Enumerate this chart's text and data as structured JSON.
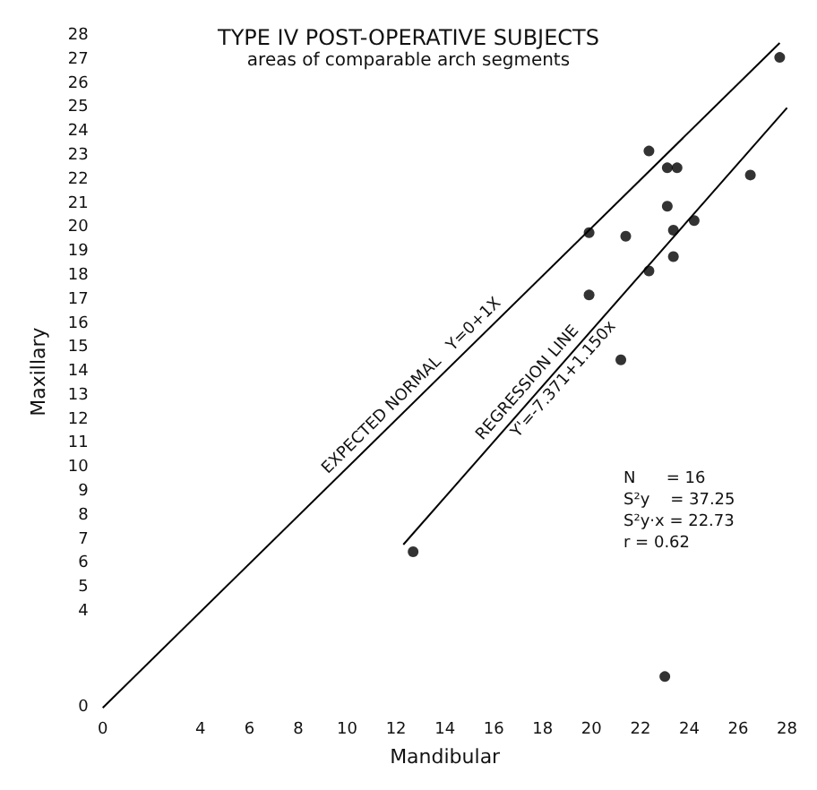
{
  "chart_data": {
    "type": "scatter",
    "title": "TYPE IV POST-OPERATIVE SUBJECTS",
    "subtitle": "areas of comparable arch segments",
    "xlabel": "Mandibular",
    "ylabel": "Maxillary",
    "x": [
      27.7,
      22.35,
      23.1,
      23.5,
      26.5,
      23.1,
      24.2,
      19.9,
      21.4,
      23.35,
      23.35,
      22.35,
      19.9,
      21.2,
      12.7,
      23.0
    ],
    "series": [
      {
        "color": "#000000",
        "values": [
          27.1,
          23.2,
          22.5,
          22.5,
          22.2,
          20.9,
          20.3,
          19.8,
          19.65,
          19.9,
          18.8,
          18.2,
          17.2,
          14.5,
          6.5,
          1.3
        ]
      },
      {
        "type": "line",
        "name": "EXPECTED NORMAL   Y=0+1X",
        "color": "#000000",
        "x": [
          0,
          27.7
        ],
        "values": [
          0,
          27.7
        ]
      },
      {
        "type": "line",
        "name": "REGRESSION LINE",
        "color": "#000000",
        "x": [
          12.3,
          28
        ],
        "values": [
          6.8,
          25.0
        ]
      }
    ],
    "xlim": [
      0,
      28
    ],
    "ylim": [
      0,
      28
    ],
    "xticks": [
      0,
      4,
      6,
      8,
      10,
      12,
      14,
      16,
      18,
      20,
      22,
      24,
      26,
      28
    ],
    "yticks": [
      0,
      4,
      5,
      6,
      7,
      8,
      9,
      10,
      11,
      12,
      13,
      14,
      15,
      16,
      17,
      18,
      19,
      20,
      21,
      22,
      23,
      24,
      25,
      26,
      27,
      28
    ],
    "line_style": "solid",
    "grid": false,
    "annotations": [
      {
        "text": "Y'=-7.371+1.150x",
        "x": 18.5,
        "y": 14.0
      },
      "N      = 16",
      "S²y    = 37.25",
      "S²y·x = 22.73",
      "r = 0.62"
    ]
  }
}
